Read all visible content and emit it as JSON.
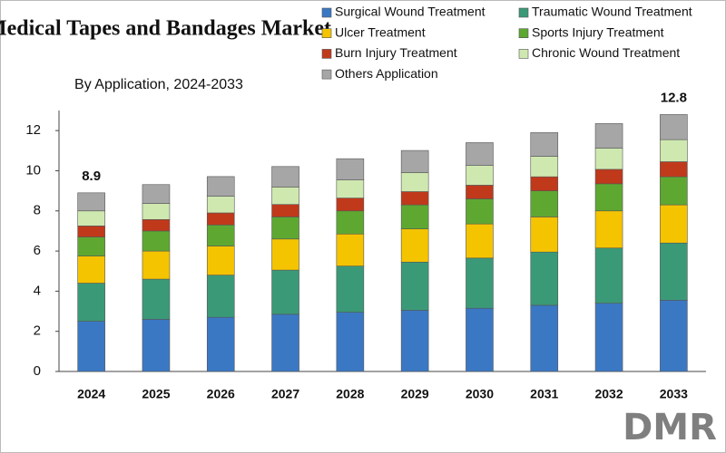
{
  "chart_data": {
    "type": "stacked_bar",
    "title": "Medical Tapes and Bandages Market",
    "subtitle": "By Application, 2024-2033",
    "logo": "DMR",
    "categories": [
      "2024",
      "2025",
      "2026",
      "2027",
      "2028",
      "2029",
      "2030",
      "2031",
      "2032",
      "2033"
    ],
    "series": [
      {
        "name": "Surgical Wound Treatment",
        "color": "#3b78c4",
        "values": [
          2.5,
          2.6,
          2.7,
          2.85,
          2.95,
          3.05,
          3.15,
          3.3,
          3.4,
          3.55
        ]
      },
      {
        "name": "Traumatic Wound Treatment",
        "color": "#3a9a78",
        "values": [
          1.9,
          2.0,
          2.1,
          2.2,
          2.3,
          2.4,
          2.5,
          2.65,
          2.75,
          2.85
        ]
      },
      {
        "name": "Ulcer Treatment",
        "color": "#f5c400",
        "values": [
          1.35,
          1.4,
          1.45,
          1.55,
          1.6,
          1.65,
          1.7,
          1.75,
          1.85,
          1.9
        ]
      },
      {
        "name": "Sports Injury Treatment",
        "color": "#5ea832",
        "values": [
          0.95,
          1.0,
          1.05,
          1.1,
          1.15,
          1.2,
          1.25,
          1.3,
          1.35,
          1.4
        ]
      },
      {
        "name": "Burn Injury Treatment",
        "color": "#c0391b",
        "values": [
          0.55,
          0.57,
          0.6,
          0.62,
          0.64,
          0.66,
          0.68,
          0.7,
          0.72,
          0.75
        ]
      },
      {
        "name": "Chronic Wound Treatment",
        "color": "#cfe8b0",
        "values": [
          0.75,
          0.8,
          0.83,
          0.87,
          0.9,
          0.95,
          0.98,
          1.02,
          1.06,
          1.1
        ]
      },
      {
        "name": "Others Application",
        "color": "#a6a6a6",
        "values": [
          0.9,
          0.94,
          0.98,
          1.02,
          1.06,
          1.1,
          1.14,
          1.18,
          1.22,
          1.25
        ]
      }
    ],
    "totals": [
      8.9,
      null,
      null,
      null,
      null,
      null,
      null,
      null,
      null,
      12.8
    ],
    "ylim": [
      0,
      13
    ],
    "yticks": [
      0,
      2,
      4,
      6,
      8,
      10,
      12
    ],
    "grid": false
  }
}
